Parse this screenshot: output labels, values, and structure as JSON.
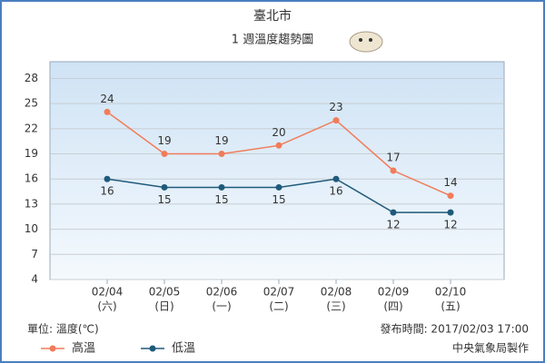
{
  "chart_data": {
    "type": "line",
    "title": "臺北市",
    "subtitle": "1 週溫度趨勢圖",
    "categories": [
      "02/04",
      "02/05",
      "02/06",
      "02/07",
      "02/08",
      "02/09",
      "02/10"
    ],
    "weekdays": [
      "(六)",
      "(日)",
      "(一)",
      "(二)",
      "(三)",
      "(四)",
      "(五)"
    ],
    "series": [
      {
        "name": "高溫",
        "color": "#f07c5a",
        "values": [
          24,
          19,
          19,
          20,
          23,
          17,
          14
        ],
        "label_side": "above"
      },
      {
        "name": "低溫",
        "color": "#1f5a7a",
        "values": [
          16,
          15,
          15,
          15,
          16,
          12,
          12
        ],
        "label_side": "below"
      }
    ],
    "ylim": [
      4,
      30
    ],
    "yticks": [
      4,
      7,
      10,
      13,
      16,
      19,
      22,
      25,
      28
    ],
    "grid": true,
    "unit_note": "單位: 溫度(℃)",
    "issued": "發布時間: 2017/02/03 17:00",
    "credit": "中央氣象局製作"
  }
}
